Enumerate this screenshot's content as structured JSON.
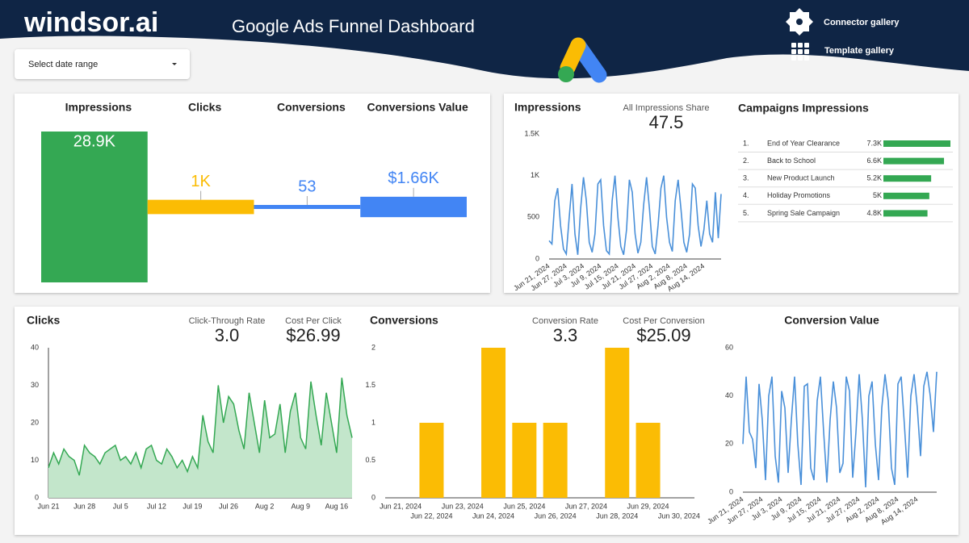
{
  "header": {
    "brand": "windsor.ai",
    "title": "Google Ads Funnel Dashboard",
    "date_selector": "Select date range",
    "links": [
      "Connector gallery",
      "Template gallery"
    ]
  },
  "chart_data": [
    {
      "type": "funnel",
      "categories": [
        "Impressions",
        "Clicks",
        "Conversions",
        "Conversions Value"
      ],
      "values": [
        28900,
        1000,
        53,
        1660
      ],
      "value_labels": [
        "28.9K",
        "1K",
        "53",
        "$1.66K"
      ],
      "colors": [
        "#34a853",
        "#fbbc04",
        "#4285f4",
        "#4285f4"
      ]
    },
    {
      "type": "line",
      "title": "Impressions",
      "kpis": [
        {
          "label": "All Impressions Share",
          "value": "47.5"
        }
      ],
      "categories": [
        "Jun 21, 2024",
        null,
        null,
        null,
        null,
        null,
        "Jun 27, 2024",
        null,
        null,
        null,
        null,
        null,
        "Jul 3, 2024",
        null,
        null,
        null,
        null,
        null,
        "Jul 9, 2024",
        null,
        null,
        null,
        null,
        null,
        "Jul 15, 2024",
        null,
        null,
        null,
        null,
        null,
        "Jul 21, 2024",
        null,
        null,
        null,
        null,
        null,
        "Jul 27, 2024",
        null,
        null,
        null,
        null,
        null,
        "Aug 2, 2024",
        null,
        null,
        null,
        null,
        null,
        "Aug 8, 2024",
        null,
        null,
        null,
        null,
        null,
        "Aug 14, 2024",
        null,
        null,
        null,
        null,
        null,
        null
      ],
      "values": [
        220,
        180,
        700,
        850,
        400,
        120,
        60,
        500,
        900,
        300,
        50,
        600,
        980,
        700,
        200,
        80,
        300,
        900,
        950,
        400,
        100,
        60,
        700,
        1000,
        500,
        150,
        50,
        350,
        950,
        800,
        300,
        70,
        200,
        650,
        980,
        600,
        150,
        60,
        400,
        850,
        1000,
        500,
        200,
        90,
        700,
        950,
        600,
        200,
        80,
        300,
        900,
        850,
        400,
        150,
        350,
        700,
        300,
        200,
        800,
        250,
        780
      ],
      "color": "#4a90d9",
      "ylim": [
        0,
        1500
      ],
      "yticks": [
        0,
        500,
        {
          "value": 1000,
          "label": "1K"
        },
        {
          "value": 1500,
          "label": "1.5K"
        }
      ]
    },
    {
      "type": "hbar",
      "title": "Campaigns Impressions",
      "ranks": [
        "1.",
        "2.",
        "3.",
        "4.",
        "5."
      ],
      "categories": [
        "End of Year Clearance",
        "Back to School",
        "New Product Launch",
        "Holiday Promotions",
        "Spring Sale Campaign"
      ],
      "values": [
        7300,
        6600,
        5200,
        5000,
        4800
      ],
      "value_labels": [
        "7.3K",
        "6.6K",
        "5.2K",
        "5K",
        "4.8K"
      ],
      "color": "#34a853"
    },
    {
      "type": "area",
      "title": "Clicks",
      "kpis": [
        {
          "label": "Click-Through Rate",
          "value": "3.0"
        },
        {
          "label": "Cost Per Click",
          "value": "$26.99"
        }
      ],
      "categories": [
        "Jun 21",
        null,
        null,
        null,
        null,
        null,
        null,
        "Jun 28",
        null,
        null,
        null,
        null,
        null,
        null,
        "Jul 5",
        null,
        null,
        null,
        null,
        null,
        null,
        "Jul 12",
        null,
        null,
        null,
        null,
        null,
        null,
        "Jul 19",
        null,
        null,
        null,
        null,
        null,
        null,
        "Jul 26",
        null,
        null,
        null,
        null,
        null,
        null,
        "Aug 2",
        null,
        null,
        null,
        null,
        null,
        null,
        "Aug 9",
        null,
        null,
        null,
        null,
        null,
        null,
        "Aug 16",
        null,
        null,
        null
      ],
      "values": [
        8,
        12,
        9,
        13,
        11,
        10,
        6,
        14,
        12,
        11,
        9,
        12,
        13,
        14,
        10,
        11,
        9,
        12,
        8,
        13,
        14,
        10,
        9,
        13,
        11,
        8,
        10,
        7,
        11,
        8,
        22,
        15,
        12,
        30,
        20,
        27,
        25,
        18,
        13,
        28,
        20,
        12,
        26,
        16,
        17,
        25,
        12,
        23,
        28,
        16,
        13,
        31,
        22,
        14,
        28,
        20,
        12,
        32,
        22,
        16
      ],
      "color": "#34a853",
      "fill": "#c3e6cb",
      "ylim": [
        0,
        40
      ],
      "yticks": [
        0,
        10,
        20,
        30,
        40
      ]
    },
    {
      "type": "bar",
      "title": "Conversions",
      "kpis": [
        {
          "label": "Conversion Rate",
          "value": "3.3"
        },
        {
          "label": "Cost Per Conversion",
          "value": "$25.09"
        }
      ],
      "categories": [
        "Jun 21, 2024",
        "Jun 22, 2024",
        "Jun 23, 2024",
        "Jun 24, 2024",
        "Jun 25, 2024",
        "Jun 26, 2024",
        "Jun 27, 2024",
        "Jun 28, 2024",
        "Jun 29, 2024",
        "Jun 30, 2024"
      ],
      "values": [
        0,
        1,
        0,
        2,
        1,
        1,
        0,
        2,
        1,
        0
      ],
      "color": "#fbbc04",
      "ylim": [
        0,
        2
      ],
      "yticks": [
        0,
        0.5,
        1,
        1.5,
        2
      ]
    },
    {
      "type": "line",
      "title": "Conversion Value",
      "categories": [
        "Jun 21, 2024",
        null,
        null,
        null,
        null,
        null,
        "Jun 27, 2024",
        null,
        null,
        null,
        null,
        null,
        "Jul 3, 2024",
        null,
        null,
        null,
        null,
        null,
        "Jul 9, 2024",
        null,
        null,
        null,
        null,
        null,
        "Jul 15, 2024",
        null,
        null,
        null,
        null,
        null,
        "Jul 21, 2024",
        null,
        null,
        null,
        null,
        null,
        "Jul 27, 2024",
        null,
        null,
        null,
        null,
        null,
        "Aug 2, 2024",
        null,
        null,
        null,
        null,
        null,
        "Aug 8, 2024",
        null,
        null,
        null,
        null,
        null,
        "Aug 14, 2024",
        null,
        null,
        null,
        null,
        null,
        null
      ],
      "values": [
        20,
        48,
        25,
        22,
        10,
        45,
        30,
        5,
        40,
        48,
        15,
        4,
        42,
        35,
        8,
        30,
        48,
        20,
        3,
        44,
        45,
        10,
        5,
        38,
        48,
        25,
        4,
        30,
        46,
        35,
        8,
        12,
        48,
        42,
        6,
        25,
        49,
        30,
        2,
        40,
        46,
        20,
        5,
        35,
        49,
        38,
        10,
        3,
        45,
        48,
        28,
        6,
        40,
        49,
        35,
        15,
        44,
        50,
        40,
        25,
        50
      ],
      "color": "#4a90d9",
      "ylim": [
        0,
        60
      ],
      "yticks": [
        0,
        20,
        40,
        60
      ]
    }
  ]
}
